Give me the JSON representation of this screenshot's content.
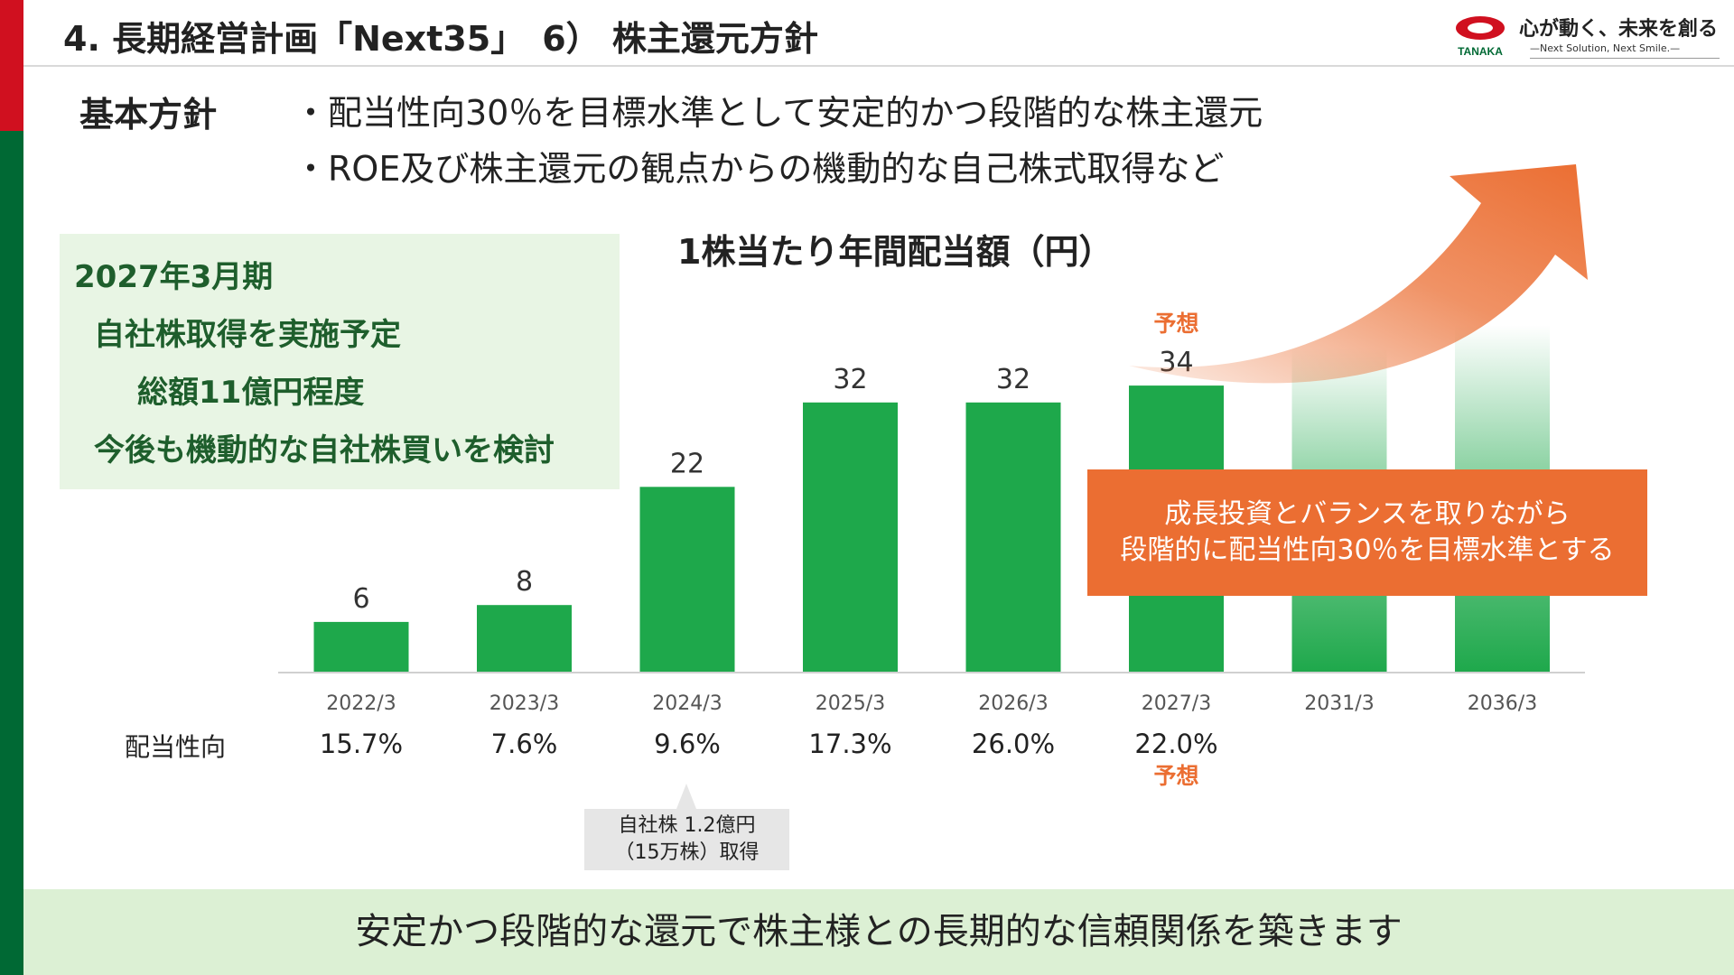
{
  "header": {
    "title": "4. 長期経営計画「Next35」　6） 株主還元方針",
    "logo_text": "TANAKA",
    "slogan": "心が動く、未来を創る",
    "slogan_sub": "—Next Solution, Next Smile.—"
  },
  "policy": {
    "label": "基本方針",
    "items": [
      "・配当性向30％を目標水準として安定的かつ段階的な株主還元",
      "・ROE及び株主還元の観点からの機動的な自己株式取得など"
    ]
  },
  "buyback": {
    "heading": "2027年3月期",
    "lines": [
      "自社株取得を実施予定",
      "総額11億円程度",
      "今後も機動的な自社株買いを検討"
    ]
  },
  "chart_data": {
    "type": "bar",
    "title": "1株当たり年間配当額（円）",
    "categories": [
      "2022/3",
      "2023/3",
      "2024/3",
      "2025/3",
      "2026/3",
      "2027/3",
      "2031/3",
      "2036/3"
    ],
    "values": [
      6,
      8,
      22,
      32,
      32,
      34,
      null,
      null
    ],
    "value_labels": [
      "6",
      "8",
      "22",
      "32",
      "32",
      "34",
      "",
      ""
    ],
    "forecast_label": "予想",
    "forecast_index": 5,
    "future_indices": [
      6,
      7
    ],
    "ylim": [
      0,
      45
    ],
    "colors": {
      "bar": "#1ea84b",
      "accent": "#eb6e32"
    },
    "payout_ratio": {
      "label": "配当性向",
      "values": [
        "15.7%",
        "7.6%",
        "9.6%",
        "17.3%",
        "26.0%",
        "22.0%",
        "",
        ""
      ],
      "forecast_label": "予想"
    }
  },
  "callout": {
    "lines": [
      "成長投資とバランスを取りながら",
      "段階的に配当性向30％を目標水準とする"
    ]
  },
  "tooltip": {
    "lines": [
      "自社株 1.2億円",
      "（15万株）取得"
    ]
  },
  "footer": {
    "message": "安定かつ段階的な還元で株主様との長期的な信頼関係を築きます"
  }
}
